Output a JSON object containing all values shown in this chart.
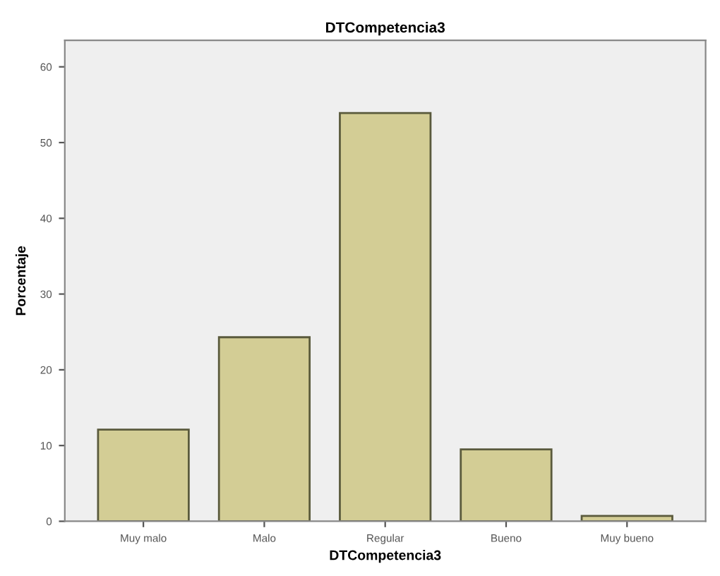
{
  "chart_data": {
    "type": "bar",
    "title": "DTCompetencia3",
    "xlabel": "DTCompetencia3",
    "ylabel": "Porcentaje",
    "categories": [
      "Muy malo",
      "Malo",
      "Regular",
      "Bueno",
      "Muy bueno"
    ],
    "values": [
      12.1,
      24.3,
      53.9,
      9.5,
      0.7
    ],
    "color": "#d3cd95",
    "ylim": [
      0,
      63.5
    ],
    "yticks": [
      0,
      10,
      20,
      30,
      40,
      50,
      60
    ],
    "grid": false,
    "legend": false
  }
}
